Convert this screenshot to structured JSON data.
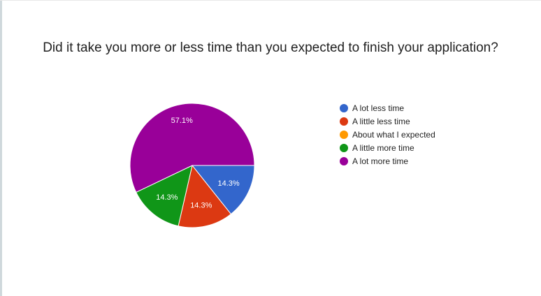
{
  "chart_data": {
    "type": "pie",
    "title": "Did it take you more or less time than you expected to finish your application?",
    "categories": [
      "A lot less time",
      "A little less time",
      "About what I expected",
      "A little more time",
      "A lot more time"
    ],
    "values": [
      14.3,
      14.3,
      0,
      14.3,
      57.1
    ],
    "value_labels": [
      "14.3%",
      "14.3%",
      "",
      "14.3%",
      "57.1%"
    ],
    "colors": [
      "#3366cc",
      "#dc3912",
      "#ff9900",
      "#109618",
      "#990099"
    ],
    "legend_position": "right",
    "start_angle_deg": 90,
    "direction": "clockwise"
  }
}
